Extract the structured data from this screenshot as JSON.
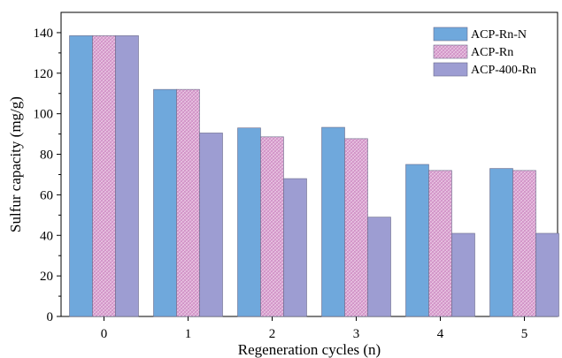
{
  "chart_data": {
    "type": "bar",
    "categories": [
      "0",
      "1",
      "2",
      "3",
      "4",
      "5"
    ],
    "series": [
      {
        "name": "ACP-Rn-N",
        "values": [
          138.5,
          112,
          93,
          93.3,
          75,
          73
        ],
        "color": "#6fa8dc",
        "pattern": "solid"
      },
      {
        "name": "ACP-Rn",
        "values": [
          138.5,
          112,
          88.6,
          87.7,
          72,
          72
        ],
        "color": "#d99fcf",
        "pattern": "crosshatch"
      },
      {
        "name": "ACP-400-Rn",
        "values": [
          138.5,
          90.5,
          68,
          49,
          41,
          41
        ],
        "color": "#9d9dd2",
        "pattern": "solid"
      }
    ],
    "xlabel": "Regeneration cycles (n)",
    "ylabel": "Sulfur capacity (mg/g)",
    "ylim": [
      0,
      150
    ],
    "yticks": [
      0,
      20,
      40,
      60,
      80,
      100,
      120,
      140
    ],
    "grid": false,
    "legend_position": "top-right"
  }
}
